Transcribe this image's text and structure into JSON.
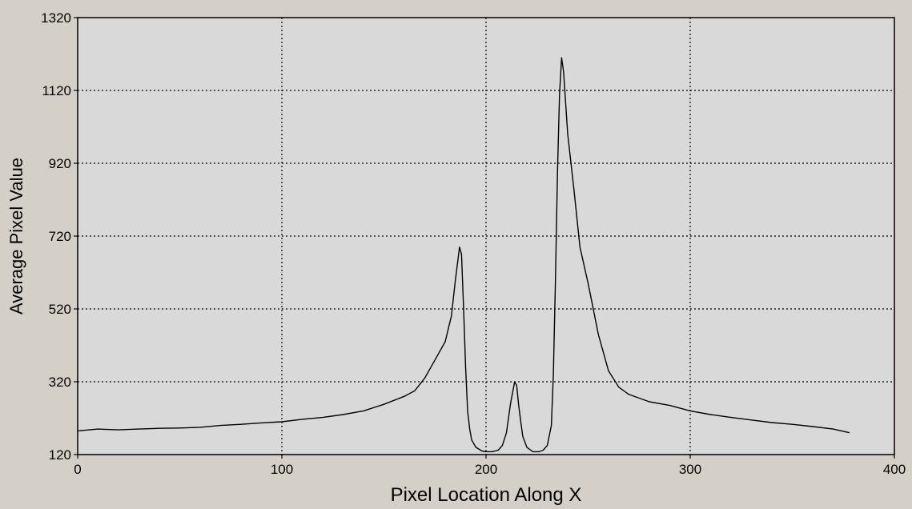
{
  "colors": {
    "window_background": "#d4d0c8",
    "plot_background": "#d9d9d9",
    "line": "#000000",
    "grid": "#000000"
  },
  "chart_data": {
    "type": "line",
    "title": "",
    "xlabel": "Pixel Location Along X",
    "ylabel": "Average Pixel Value",
    "xlim": [
      0,
      400
    ],
    "ylim": [
      120,
      1320
    ],
    "xticks": [
      0,
      100,
      200,
      300,
      400
    ],
    "yticks": [
      120,
      320,
      520,
      720,
      920,
      1120,
      1320
    ],
    "grid": true,
    "grid_style": "dotted",
    "legend": "none",
    "series": [
      {
        "points": [
          [
            0,
            185
          ],
          [
            10,
            190
          ],
          [
            20,
            188
          ],
          [
            30,
            190
          ],
          [
            40,
            192
          ],
          [
            50,
            193
          ],
          [
            60,
            195
          ],
          [
            70,
            200
          ],
          [
            80,
            203
          ],
          [
            90,
            207
          ],
          [
            100,
            210
          ],
          [
            110,
            217
          ],
          [
            120,
            222
          ],
          [
            130,
            230
          ],
          [
            140,
            240
          ],
          [
            150,
            258
          ],
          [
            160,
            280
          ],
          [
            165,
            295
          ],
          [
            170,
            330
          ],
          [
            175,
            380
          ],
          [
            180,
            430
          ],
          [
            183,
            500
          ],
          [
            185,
            600
          ],
          [
            187,
            690
          ],
          [
            188,
            670
          ],
          [
            189,
            520
          ],
          [
            190,
            360
          ],
          [
            191,
            240
          ],
          [
            192,
            190
          ],
          [
            193,
            160
          ],
          [
            195,
            140
          ],
          [
            198,
            130
          ],
          [
            200,
            128
          ],
          [
            203,
            128
          ],
          [
            206,
            132
          ],
          [
            208,
            145
          ],
          [
            210,
            180
          ],
          [
            212,
            260
          ],
          [
            214,
            320
          ],
          [
            215,
            310
          ],
          [
            216,
            255
          ],
          [
            217,
            210
          ],
          [
            218,
            170
          ],
          [
            220,
            140
          ],
          [
            223,
            128
          ],
          [
            226,
            128
          ],
          [
            228,
            132
          ],
          [
            230,
            145
          ],
          [
            232,
            200
          ],
          [
            233,
            340
          ],
          [
            234,
            600
          ],
          [
            235,
            900
          ],
          [
            236,
            1110
          ],
          [
            237,
            1210
          ],
          [
            238,
            1170
          ],
          [
            240,
            1000
          ],
          [
            243,
            850
          ],
          [
            246,
            690
          ],
          [
            250,
            590
          ],
          [
            255,
            450
          ],
          [
            260,
            350
          ],
          [
            265,
            305
          ],
          [
            270,
            285
          ],
          [
            280,
            265
          ],
          [
            290,
            255
          ],
          [
            300,
            240
          ],
          [
            310,
            230
          ],
          [
            320,
            222
          ],
          [
            330,
            215
          ],
          [
            340,
            208
          ],
          [
            350,
            203
          ],
          [
            360,
            197
          ],
          [
            370,
            190
          ],
          [
            378,
            180
          ]
        ]
      }
    ]
  }
}
